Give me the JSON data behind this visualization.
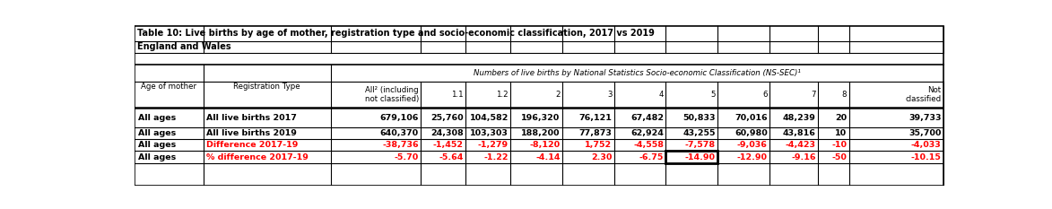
{
  "title_line1": "Table 10: Live births by age of mother, registration type and socio-economic classification, 2017 vs 2019",
  "title_line2": "England and Wales",
  "header_span": "Numbers of live births by National Statistics Socio-economic Classification (NS-SEC)¹",
  "col_headers_row1": [
    "",
    "",
    "All² (including\nnot classified)",
    "1.1",
    "1.2",
    "2",
    "3",
    "4",
    "5",
    "6",
    "7",
    "8",
    "Not\nclassified"
  ],
  "row_headers_col1": [
    "Age of mother",
    "All ages",
    "All ages",
    "All ages",
    "All ages"
  ],
  "row_headers_col2": [
    "Registration Type",
    "All live births 2017",
    "All live births 2019",
    "Difference 2017-19",
    "% difference 2017-19"
  ],
  "rows": [
    [
      "679,106",
      "25,760",
      "104,582",
      "196,320",
      "76,121",
      "67,482",
      "50,833",
      "70,016",
      "48,239",
      "20",
      "39,733"
    ],
    [
      "640,370",
      "24,308",
      "103,303",
      "188,200",
      "77,873",
      "62,924",
      "43,255",
      "60,980",
      "43,816",
      "10",
      "35,700"
    ],
    [
      "-38,736",
      "-1,452",
      "-1,279",
      "-8,120",
      "1,752",
      "-4,558",
      "-7,578",
      "-9,036",
      "-4,423",
      "-10",
      "-4,033"
    ],
    [
      "-5.70",
      "-5.64",
      "-1.22",
      "-4.14",
      "2.30",
      "-6.75",
      "-14.90",
      "-12.90",
      "-9.16",
      "-50",
      "-10.15"
    ]
  ],
  "row_colors": [
    "black",
    "black",
    "red",
    "red"
  ],
  "highlighted_cell_row": 3,
  "highlighted_cell_col": 6,
  "fig_width": 11.73,
  "fig_height": 2.33,
  "dpi": 100
}
